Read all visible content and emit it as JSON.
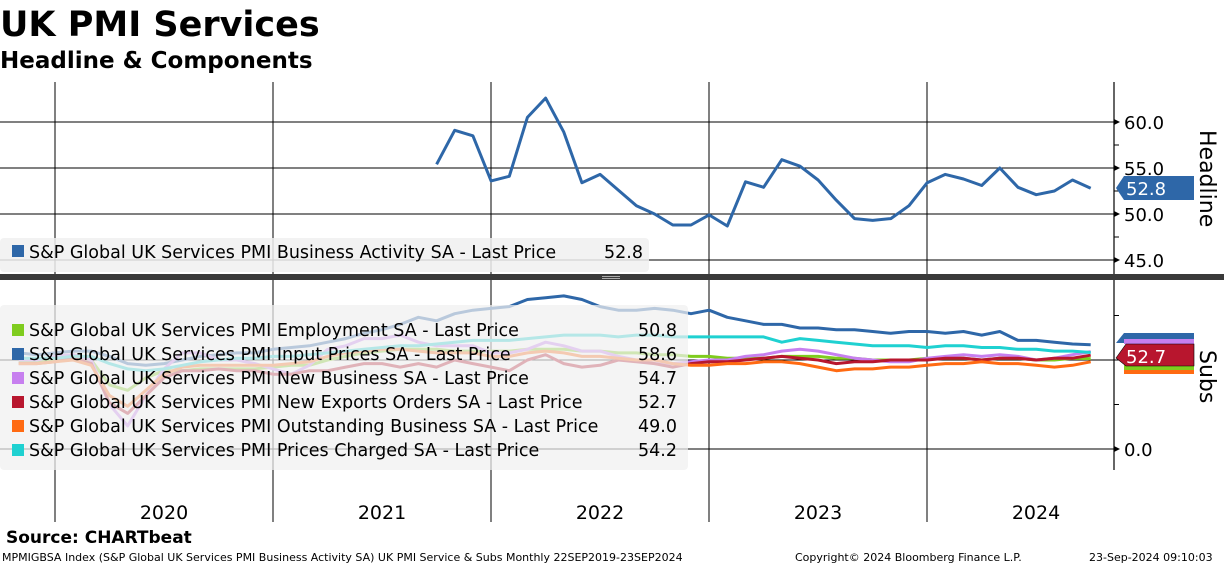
{
  "header": {
    "title": "UK PMI Services",
    "subtitle": "Headline & Components"
  },
  "chart_data": [
    {
      "type": "line",
      "panel": "Headline",
      "ylim": [
        43,
        64
      ],
      "yticks": [
        "60.0",
        "55.0",
        "50.0",
        "45.0"
      ],
      "ytick_values": [
        60,
        55,
        50,
        45
      ],
      "start": "2021-09",
      "frequency": "monthly",
      "series": [
        {
          "name": "S&P Global UK Services PMI Business Activity SA - Last Price",
          "last": "52.8",
          "color": "#2e67a8",
          "values": [
            55.4,
            59.1,
            58.5,
            53.6,
            54.1,
            60.5,
            62.6,
            58.9,
            53.4,
            54.3,
            52.6,
            50.9,
            50.0,
            48.8,
            48.8,
            49.9,
            48.7,
            53.5,
            52.9,
            55.9,
            55.2,
            53.7,
            51.5,
            49.5,
            49.3,
            49.5,
            50.9,
            53.4,
            54.3,
            53.8,
            53.1,
            55.0,
            52.9,
            52.1,
            52.5,
            53.7,
            52.8
          ]
        }
      ]
    },
    {
      "type": "line",
      "panel": "Subs",
      "ylim": [
        -12,
        95
      ],
      "yticks": [
        "0.0"
      ],
      "ytick_values": [
        0
      ],
      "start": "2019-10",
      "frequency": "monthly",
      "last_tag": "52.7",
      "series": [
        {
          "name": "S&P Global UK Services PMI Employment SA - Last Price",
          "last": "50.8",
          "color": "#7fcc1e",
          "values": [
            49,
            49,
            50,
            51,
            50,
            36,
            33,
            40,
            44,
            44,
            45,
            45,
            45,
            45,
            46,
            47,
            47,
            50,
            52,
            54,
            55,
            56,
            56,
            56,
            55,
            55,
            55,
            55,
            56,
            56,
            56,
            55,
            55,
            54,
            54,
            53,
            53,
            52,
            52,
            51,
            51,
            51,
            52,
            52,
            52,
            51,
            51,
            50,
            50,
            50,
            51,
            51,
            51,
            50,
            51,
            51,
            50,
            50,
            51,
            50.8
          ]
        },
        {
          "name": "S&P Global UK Services PMI Input Prices SA - Last Price",
          "last": "58.6",
          "color": "#2e67a8",
          "values": [
            54,
            53,
            54,
            55,
            55,
            52,
            48,
            47,
            48,
            50,
            52,
            53,
            54,
            54,
            56,
            57,
            58,
            60,
            62,
            65,
            67,
            70,
            74,
            72,
            76,
            78,
            79,
            80,
            84,
            85,
            86,
            84,
            80,
            78,
            78,
            79,
            78,
            76,
            78,
            74,
            72,
            70,
            70,
            68,
            68,
            67,
            67,
            66,
            65,
            66,
            66,
            65,
            66,
            64,
            66,
            61,
            61,
            60,
            59,
            58.6
          ]
        },
        {
          "name": "S&P Global UK Services PMI New Business SA - Last Price",
          "last": "54.7",
          "color": "#c77fef",
          "values": [
            50,
            50,
            52,
            53,
            50,
            25,
            13,
            30,
            45,
            54,
            54,
            50,
            50,
            48,
            45,
            42,
            47,
            56,
            58,
            62,
            62,
            64,
            60,
            58,
            58,
            58,
            54,
            54,
            56,
            60,
            58,
            55,
            55,
            52,
            50,
            48,
            48,
            49,
            50,
            50,
            52,
            53,
            55,
            56,
            55,
            53,
            51,
            50,
            49,
            49,
            51,
            52,
            53,
            52,
            53,
            52,
            50,
            51,
            53,
            54.7
          ]
        },
        {
          "name": "S&P Global UK Services PMI New Exports Orders SA - Last Price",
          "last": "52.7",
          "color": "#b8162e",
          "values": [
            48,
            48,
            49,
            51,
            48,
            26,
            20,
            30,
            40,
            44,
            44,
            45,
            44,
            44,
            42,
            42,
            44,
            44,
            46,
            48,
            48,
            46,
            48,
            46,
            50,
            48,
            46,
            44,
            50,
            53,
            48,
            46,
            47,
            50,
            49,
            48,
            46,
            48,
            49,
            49,
            50,
            51,
            52,
            51,
            50,
            48,
            49,
            49,
            50,
            50,
            50,
            51,
            51,
            50,
            51,
            51,
            50,
            51,
            51,
            52.7
          ]
        },
        {
          "name": "S&P Global UK Services PMI Outstanding Business SA - Last Price",
          "last": "49.0",
          "color": "#ff6a12",
          "values": [
            48,
            48,
            49,
            50,
            47,
            30,
            24,
            33,
            42,
            46,
            47,
            47,
            47,
            47,
            47,
            48,
            49,
            52,
            54,
            55,
            56,
            56,
            55,
            54,
            54,
            54,
            52,
            52,
            54,
            55,
            54,
            52,
            52,
            51,
            50,
            50,
            48,
            47,
            47,
            48,
            48,
            49,
            49,
            48,
            46,
            44,
            45,
            45,
            46,
            46,
            47,
            48,
            48,
            49,
            48,
            48,
            47,
            46,
            47,
            49.0
          ]
        },
        {
          "name": "S&P Global UK Services PMI Prices Charged SA - Last Price",
          "last": "54.2",
          "color": "#1fd1d1",
          "values": [
            51,
            51,
            51,
            52,
            52,
            48,
            45,
            44,
            45,
            47,
            49,
            50,
            51,
            51,
            52,
            52,
            53,
            54,
            55,
            56,
            57,
            58,
            58,
            59,
            60,
            61,
            61,
            61,
            62,
            63,
            64,
            64,
            64,
            63,
            64,
            64,
            63,
            63,
            63,
            63,
            63,
            63,
            60,
            62,
            61,
            60,
            59,
            58,
            58,
            58,
            57,
            58,
            58,
            57,
            57,
            56,
            56,
            55,
            55,
            54.2
          ]
        }
      ]
    }
  ],
  "xaxis": {
    "labels": [
      "2020",
      "2021",
      "2022",
      "2023",
      "2024"
    ]
  },
  "panel_labels": {
    "top": "Headline",
    "bottom": "Subs"
  },
  "footer": {
    "source": "Source: CHARTbeat",
    "description": "MPMIGBSA Index (S&P Global UK Services PMI Business Activity SA) UK PMI Service & Subs  Monthly 22SEP2019-23SEP2024",
    "copyright": "Copyright© 2024 Bloomberg Finance L.P.",
    "timestamp": "23-Sep-2024 09:10:03"
  }
}
